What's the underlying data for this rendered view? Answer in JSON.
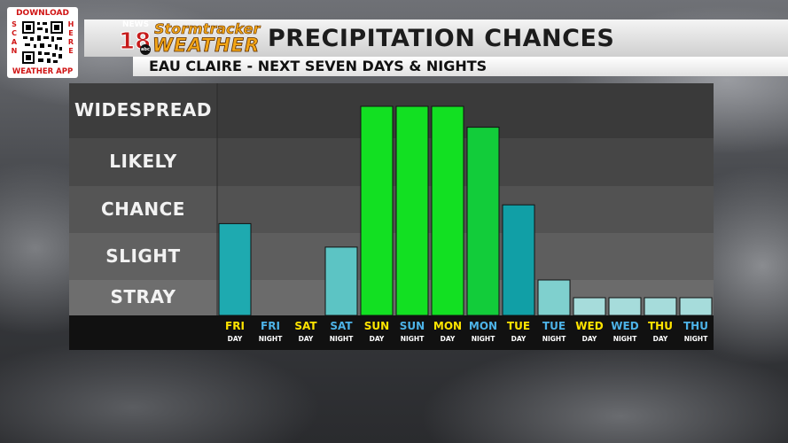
{
  "promo": {
    "top_text": "DOWNLOAD",
    "left_text": "SCAN",
    "right_text": "HERE",
    "bottom_text": "WEATHER APP"
  },
  "logo": {
    "news_text": "NEWS",
    "channel_number": "18",
    "network_text": "abc",
    "brand_top": "Stormtracker",
    "brand_bottom": "WEATHER"
  },
  "header": {
    "title": "PRECIPITATION CHANCES",
    "subtitle": "EAU CLAIRE - NEXT SEVEN DAYS & NIGHTS"
  },
  "colors": {
    "day_label": "#ffe400",
    "night_label": "#4db3e8",
    "stray_level_bar": "#a6dcdb",
    "slight_level_bar": "#5cc4c4",
    "chance_level_bar": "#1eaab0",
    "likely_level_bar": "#12cc3a",
    "widespread_level_bar": "#12e022"
  },
  "chart_data": {
    "type": "bar",
    "title": "PRECIPITATION CHANCES",
    "subtitle": "EAU CLAIRE - NEXT SEVEN DAYS & NIGHTS",
    "y_categories": [
      "STRAY",
      "SLIGHT",
      "CHANCE",
      "LIKELY",
      "WIDESPREAD"
    ],
    "ylim": [
      0,
      5
    ],
    "categories": [
      {
        "day": "FRI",
        "period": "DAY"
      },
      {
        "day": "FRI",
        "period": "NIGHT"
      },
      {
        "day": "SAT",
        "period": "DAY"
      },
      {
        "day": "SAT",
        "period": "NIGHT"
      },
      {
        "day": "SUN",
        "period": "DAY"
      },
      {
        "day": "SUN",
        "period": "NIGHT"
      },
      {
        "day": "MON",
        "period": "DAY"
      },
      {
        "day": "MON",
        "period": "NIGHT"
      },
      {
        "day": "TUE",
        "period": "DAY"
      },
      {
        "day": "TUE",
        "period": "NIGHT"
      },
      {
        "day": "WED",
        "period": "DAY"
      },
      {
        "day": "WED",
        "period": "NIGHT"
      },
      {
        "day": "THU",
        "period": "DAY"
      },
      {
        "day": "THU",
        "period": "NIGHT"
      }
    ],
    "values": [
      2.2,
      0,
      0,
      1.7,
      4.7,
      4.7,
      4.7,
      4.2,
      2.6,
      1.0,
      0.5,
      0.5,
      0.5,
      0.5
    ],
    "bar_colors": [
      "#1eaab0",
      "#1eaab0",
      "#1eaab0",
      "#5cc4c4",
      "#12e022",
      "#12e022",
      "#12e022",
      "#12cc3a",
      "#119fa6",
      "#7fd0ce",
      "#a6dcdb",
      "#a6dcdb",
      "#a6dcdb",
      "#a6dcdb"
    ],
    "grid": false,
    "legend": "none"
  }
}
